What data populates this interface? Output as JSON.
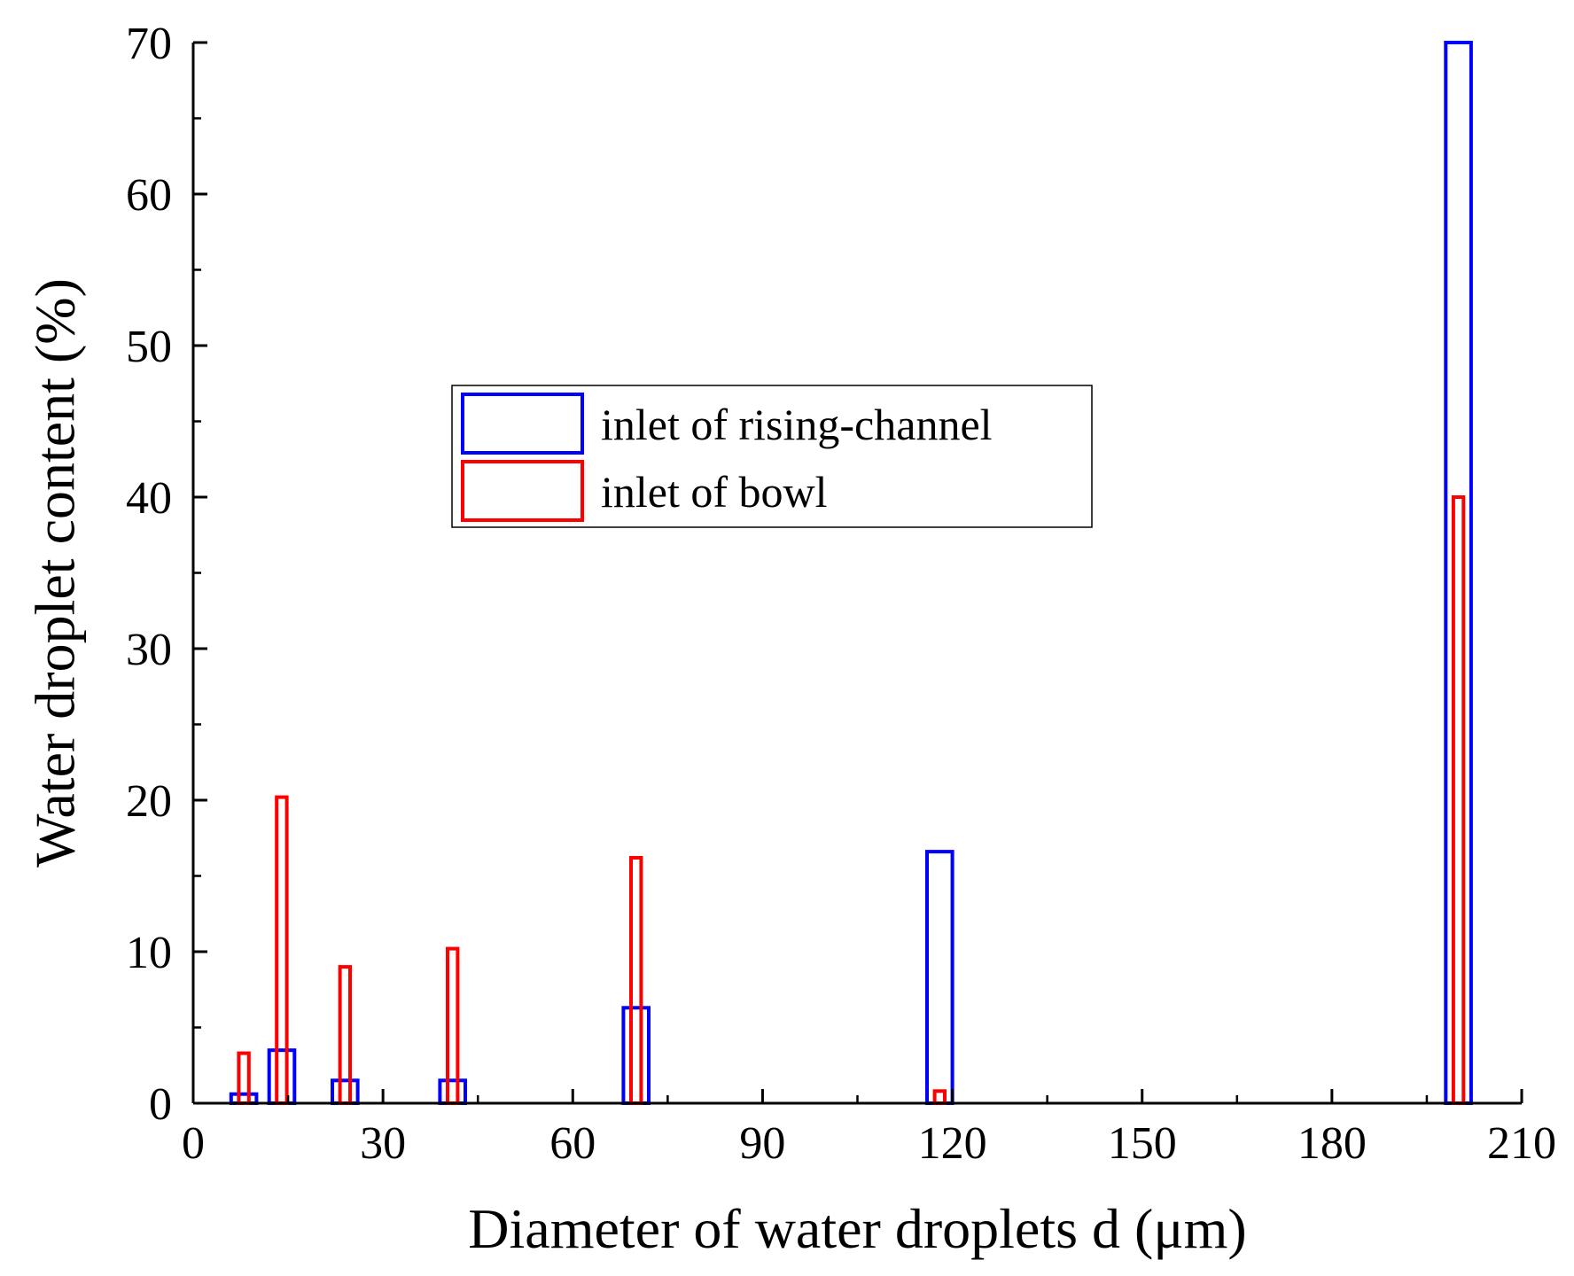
{
  "chart_data": {
    "type": "bar",
    "title": "",
    "xlabel": "Diameter of water droplets d (μm)",
    "ylabel": "Water droplet content (%)",
    "xlim": [
      0,
      210
    ],
    "ylim": [
      0,
      70
    ],
    "xticks": [
      0,
      30,
      60,
      90,
      120,
      150,
      180,
      210
    ],
    "yticks": [
      0,
      10,
      20,
      30,
      40,
      50,
      60,
      70
    ],
    "x_tick_labels": [
      "0",
      "30",
      "60",
      "90",
      "120",
      "150",
      "180",
      "210"
    ],
    "y_tick_labels": [
      "0",
      "10",
      "20",
      "30",
      "40",
      "50",
      "60",
      "70"
    ],
    "bar_style": "hollow outlined bars",
    "legend_position": "center-left",
    "series": [
      {
        "name": "inlet of rising-channel",
        "color": "#0000ff",
        "bar_width": 4,
        "x": [
          8,
          14,
          24,
          41,
          70,
          118,
          200
        ],
        "values": [
          0.6,
          3.5,
          1.5,
          1.5,
          6.3,
          16.6,
          70
        ]
      },
      {
        "name": "inlet of bowl",
        "color": "#ff0000",
        "bar_width": 1.6,
        "x": [
          8,
          14,
          24,
          41,
          70,
          118,
          200
        ],
        "values": [
          3.3,
          20.2,
          9.0,
          10.2,
          16.2,
          0.8,
          40
        ]
      }
    ]
  }
}
